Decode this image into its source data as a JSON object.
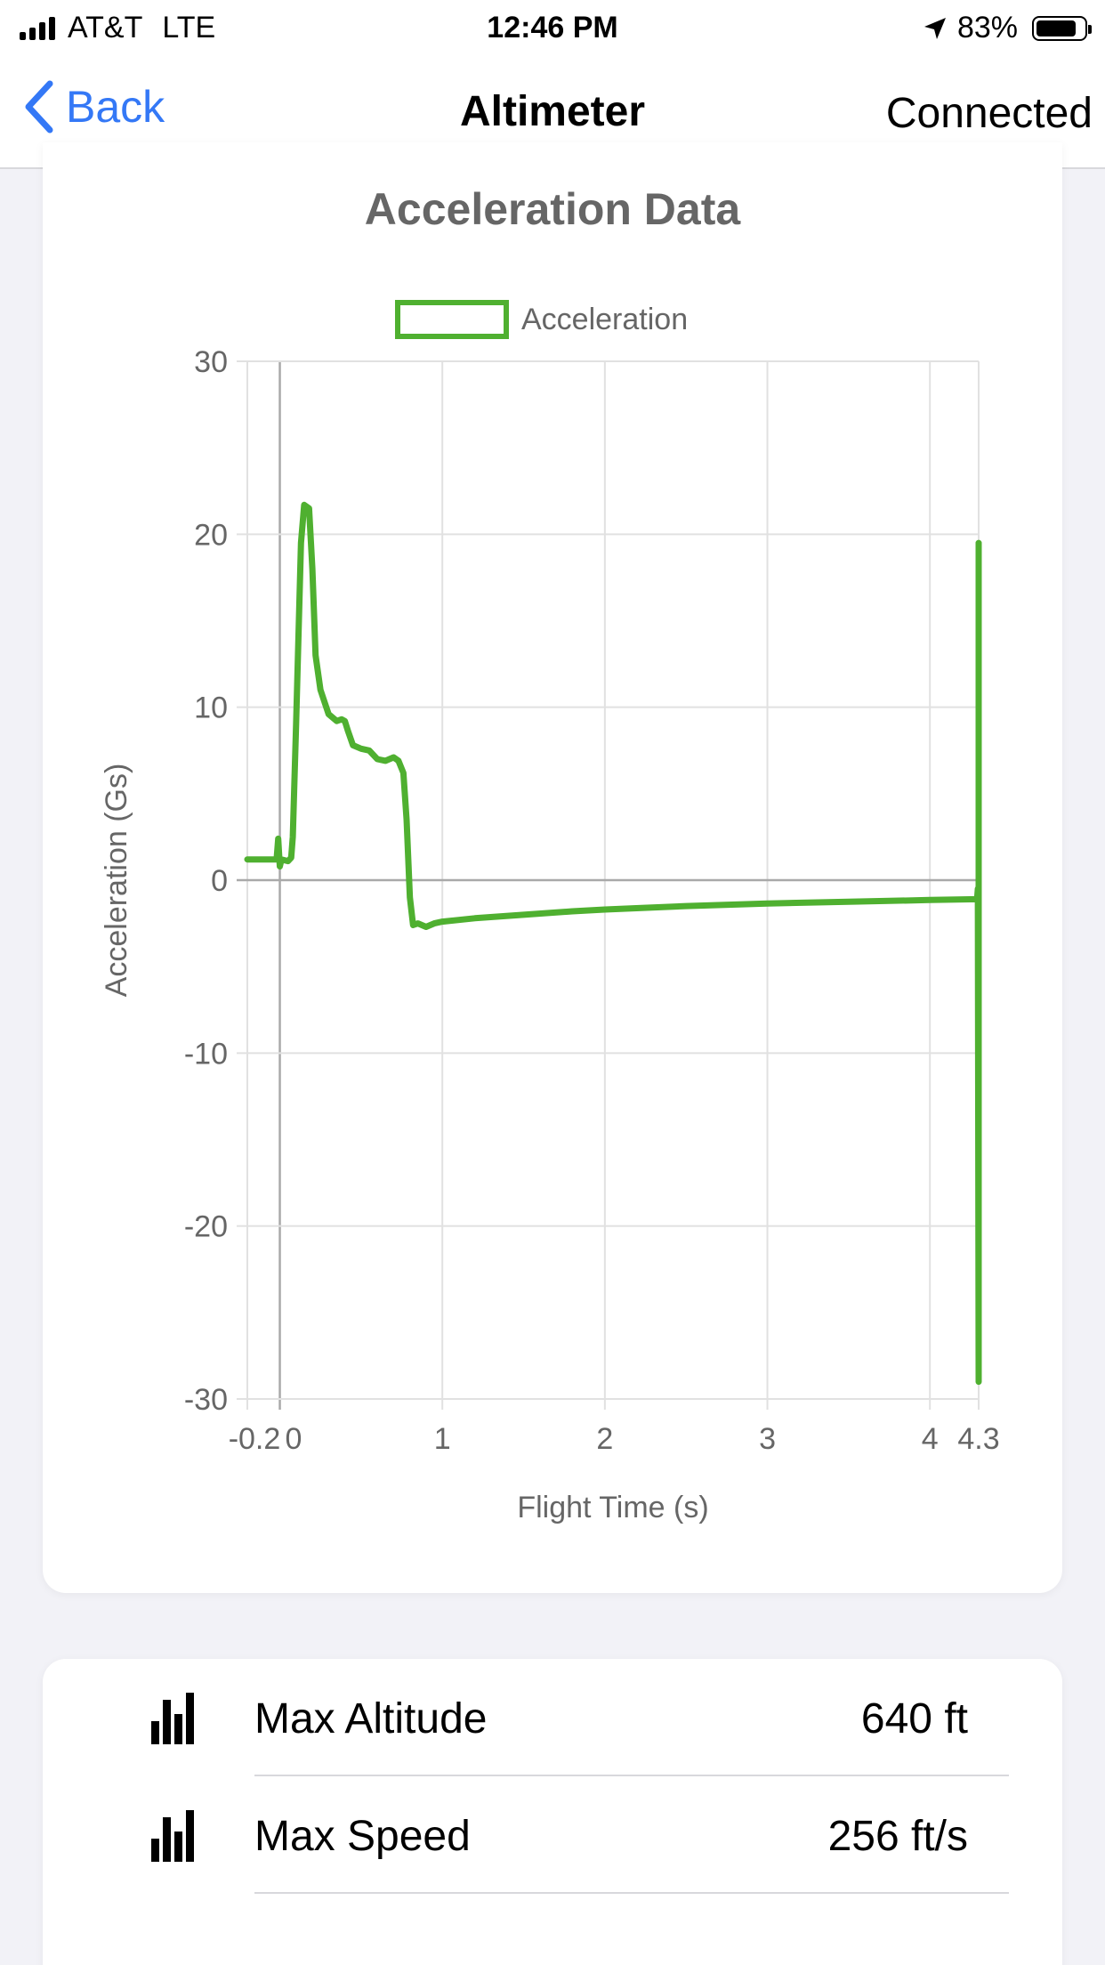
{
  "status_bar": {
    "carrier": "AT&T",
    "network": "LTE",
    "time": "12:46 PM",
    "battery": "83%"
  },
  "nav": {
    "back_label": "Back",
    "title": "Altimeter",
    "status": "Connected"
  },
  "colors": {
    "accent": "#3478f6",
    "series": "#4fb030",
    "text_gray": "#666666"
  },
  "chart_data": {
    "type": "line",
    "title": "Acceleration Data",
    "xlabel": "Flight Time (s)",
    "ylabel": "Acceleration (Gs)",
    "xlim": [
      -0.2,
      4.3
    ],
    "ylim": [
      -30,
      30
    ],
    "x_ticks": [
      -0.2,
      0,
      1,
      2,
      3,
      4,
      4.3
    ],
    "x_tick_labels": [
      "-0.2",
      "0",
      "1",
      "2",
      "3",
      "4",
      "4.3"
    ],
    "y_ticks": [
      30,
      20,
      10,
      0,
      -10,
      -20,
      -30
    ],
    "y_tick_labels": [
      "30",
      "20",
      "10",
      "0",
      "-10",
      "-20",
      "-30"
    ],
    "grid": true,
    "legend_position": "top-center",
    "series": [
      {
        "name": "Acceleration",
        "points": [
          [
            -0.2,
            1.2
          ],
          [
            -0.02,
            1.2
          ],
          [
            -0.01,
            2.4
          ],
          [
            0.0,
            0.8
          ],
          [
            0.01,
            1.2
          ],
          [
            0.05,
            1.1
          ],
          [
            0.07,
            1.3
          ],
          [
            0.08,
            2.5
          ],
          [
            0.1,
            9.0
          ],
          [
            0.13,
            19.5
          ],
          [
            0.15,
            21.7
          ],
          [
            0.18,
            21.5
          ],
          [
            0.2,
            18.0
          ],
          [
            0.22,
            13.0
          ],
          [
            0.25,
            11.0
          ],
          [
            0.3,
            9.6
          ],
          [
            0.35,
            9.2
          ],
          [
            0.38,
            9.3
          ],
          [
            0.4,
            9.2
          ],
          [
            0.42,
            8.6
          ],
          [
            0.45,
            7.8
          ],
          [
            0.5,
            7.6
          ],
          [
            0.55,
            7.5
          ],
          [
            0.6,
            7.0
          ],
          [
            0.65,
            6.9
          ],
          [
            0.7,
            7.1
          ],
          [
            0.73,
            6.9
          ],
          [
            0.76,
            6.2
          ],
          [
            0.78,
            3.5
          ],
          [
            0.8,
            -1.0
          ],
          [
            0.82,
            -2.6
          ],
          [
            0.85,
            -2.5
          ],
          [
            0.9,
            -2.7
          ],
          [
            0.95,
            -2.5
          ],
          [
            1.0,
            -2.4
          ],
          [
            1.2,
            -2.2
          ],
          [
            1.5,
            -2.0
          ],
          [
            1.8,
            -1.8
          ],
          [
            2.0,
            -1.7
          ],
          [
            2.5,
            -1.5
          ],
          [
            3.0,
            -1.35
          ],
          [
            3.5,
            -1.25
          ],
          [
            4.0,
            -1.15
          ],
          [
            4.29,
            -1.1
          ],
          [
            4.295,
            -0.5
          ],
          [
            4.3,
            -29.0
          ],
          [
            4.3,
            19.5
          ]
        ]
      }
    ]
  },
  "stats": [
    {
      "label": "Max Altitude",
      "value": "640 ft",
      "icon": "bar-chart-icon"
    },
    {
      "label": "Max Speed",
      "value": "256 ft/s",
      "icon": "bar-chart-icon"
    }
  ]
}
